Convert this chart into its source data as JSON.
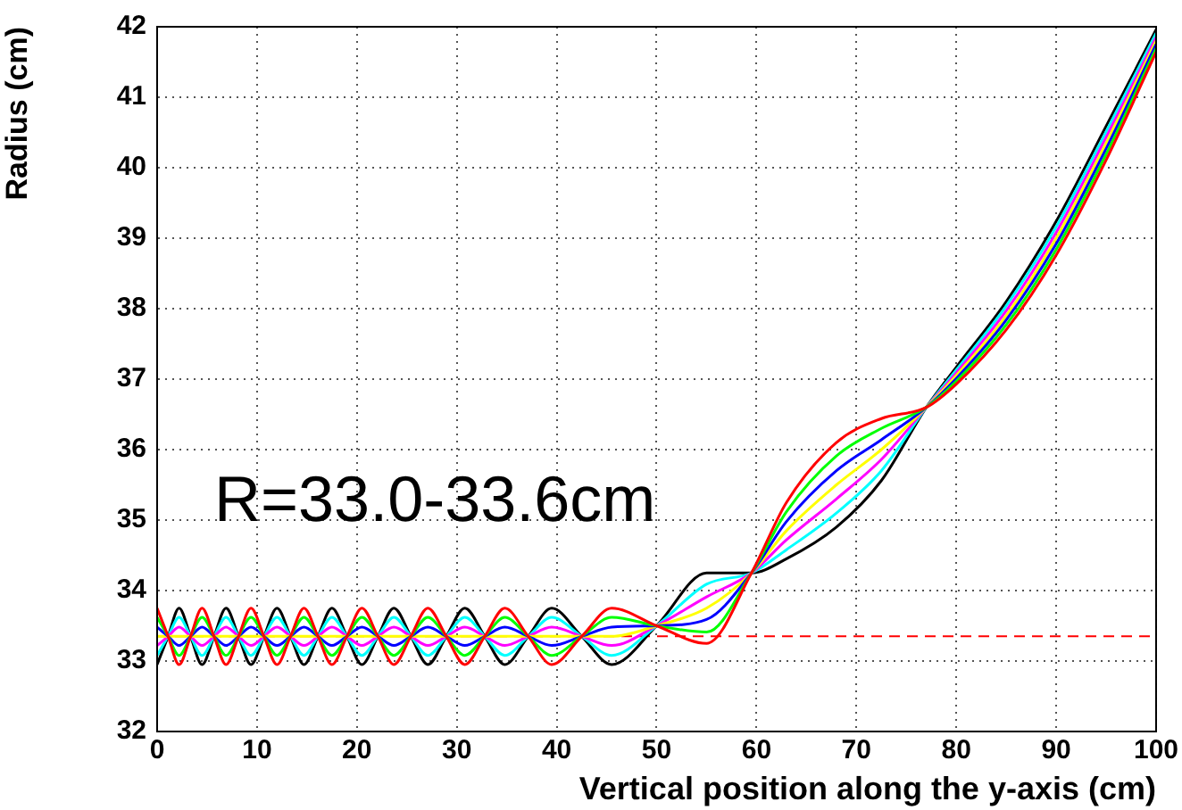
{
  "chart_data": {
    "type": "line",
    "xlabel": "Vertical position along the y-axis (cm)",
    "ylabel": "Radius (cm)",
    "annotations": [
      "R=33.0-33.6cm"
    ],
    "x": [
      0,
      1.1,
      2.2,
      3.35,
      4.5,
      5.7,
      6.9,
      8.15,
      9.4,
      10.7,
      12,
      13.35,
      14.7,
      16.1,
      17.5,
      19,
      20.5,
      22.1,
      23.7,
      25.4,
      27.1,
      28.95,
      30.8,
      32.8,
      34.8,
      37.15,
      39.5,
      42.5,
      45.5,
      50,
      55,
      59.5,
      63,
      68,
      72.5,
      77,
      80,
      85,
      90,
      95,
      100
    ],
    "series": [
      {
        "color": "#ff0000",
        "values": [
          33.75,
          33.35,
          32.95,
          33.35,
          33.75,
          33.35,
          32.95,
          33.35,
          33.75,
          33.35,
          32.95,
          33.35,
          33.75,
          33.35,
          32.95,
          33.35,
          33.75,
          33.35,
          32.95,
          33.35,
          33.75,
          33.35,
          32.95,
          33.35,
          33.75,
          33.35,
          32.95,
          33.35,
          33.75,
          33.5,
          33.25,
          34.25,
          35.25,
          36.1,
          36.44,
          36.6,
          36.93,
          37.7,
          38.76,
          40.11,
          41.64
        ]
      },
      {
        "color": "#00ff00",
        "values": [
          33.62,
          33.35,
          33.08,
          33.35,
          33.62,
          33.35,
          33.08,
          33.35,
          33.62,
          33.35,
          33.08,
          33.35,
          33.62,
          33.35,
          33.08,
          33.35,
          33.62,
          33.35,
          33.08,
          33.35,
          33.62,
          33.35,
          33.08,
          33.35,
          33.62,
          33.35,
          33.08,
          33.35,
          33.62,
          33.5,
          33.41,
          34.25,
          35.12,
          35.91,
          36.3,
          36.6,
          36.97,
          37.77,
          38.84,
          40.19,
          41.69
        ]
      },
      {
        "color": "#0000ff",
        "values": [
          33.48,
          33.35,
          33.22,
          33.35,
          33.48,
          33.35,
          33.22,
          33.35,
          33.48,
          33.35,
          33.22,
          33.35,
          33.48,
          33.35,
          33.22,
          33.35,
          33.48,
          33.35,
          33.22,
          33.35,
          33.48,
          33.35,
          33.22,
          33.35,
          33.48,
          33.35,
          33.22,
          33.35,
          33.48,
          33.5,
          33.59,
          34.25,
          34.98,
          35.7,
          36.14,
          36.6,
          37.01,
          37.84,
          38.92,
          40.27,
          41.75
        ]
      },
      {
        "color": "#ffff00",
        "values": [
          33.35,
          33.35,
          33.35,
          33.35,
          33.35,
          33.35,
          33.35,
          33.35,
          33.35,
          33.35,
          33.35,
          33.35,
          33.35,
          33.35,
          33.35,
          33.35,
          33.35,
          33.35,
          33.35,
          33.35,
          33.35,
          33.35,
          33.35,
          33.35,
          33.35,
          33.35,
          33.35,
          33.35,
          33.35,
          33.5,
          33.75,
          34.25,
          34.85,
          35.5,
          36.0,
          36.6,
          37.05,
          37.9,
          39.0,
          40.35,
          41.8
        ]
      },
      {
        "color": "#ff00ff",
        "values": [
          33.22,
          33.35,
          33.48,
          33.35,
          33.22,
          33.35,
          33.48,
          33.35,
          33.22,
          33.35,
          33.48,
          33.35,
          33.22,
          33.35,
          33.48,
          33.35,
          33.22,
          33.35,
          33.48,
          33.35,
          33.22,
          33.35,
          33.48,
          33.35,
          33.22,
          33.35,
          33.48,
          33.35,
          33.22,
          33.5,
          33.91,
          34.25,
          34.72,
          35.3,
          35.86,
          36.6,
          37.09,
          37.97,
          39.08,
          40.43,
          41.85
        ]
      },
      {
        "color": "#00ffff",
        "values": [
          33.08,
          33.35,
          33.62,
          33.35,
          33.08,
          33.35,
          33.62,
          33.35,
          33.08,
          33.35,
          33.62,
          33.35,
          33.08,
          33.35,
          33.62,
          33.35,
          33.08,
          33.35,
          33.62,
          33.35,
          33.08,
          33.35,
          33.62,
          33.35,
          33.08,
          33.35,
          33.62,
          33.35,
          33.08,
          33.5,
          34.09,
          34.25,
          34.58,
          35.1,
          35.7,
          36.6,
          37.13,
          38.04,
          39.16,
          40.51,
          41.91
        ]
      },
      {
        "color": "#000000",
        "values": [
          32.95,
          33.35,
          33.75,
          33.35,
          32.95,
          33.35,
          33.75,
          33.35,
          32.95,
          33.35,
          33.75,
          33.35,
          32.95,
          33.35,
          33.75,
          33.35,
          32.95,
          33.35,
          33.75,
          33.35,
          32.95,
          33.35,
          33.75,
          33.35,
          32.95,
          33.35,
          33.75,
          33.35,
          32.95,
          33.5,
          34.25,
          34.25,
          34.45,
          34.9,
          35.56,
          36.6,
          37.17,
          38.1,
          39.24,
          40.59,
          41.96
        ]
      }
    ],
    "ref_lines": [
      {
        "axis": "y",
        "value": 33.35,
        "color": "#ff0000",
        "line_style": "dashed"
      }
    ],
    "xlim": [
      0,
      100
    ],
    "xticks": [
      0,
      10,
      20,
      30,
      40,
      50,
      60,
      70,
      80,
      90,
      100
    ],
    "ylim": [
      32,
      42
    ],
    "yticks": [
      32,
      33,
      34,
      35,
      36,
      37,
      38,
      39,
      40,
      41,
      42
    ],
    "grid": true,
    "legend": false,
    "marker": "none",
    "line_style": "solid"
  }
}
